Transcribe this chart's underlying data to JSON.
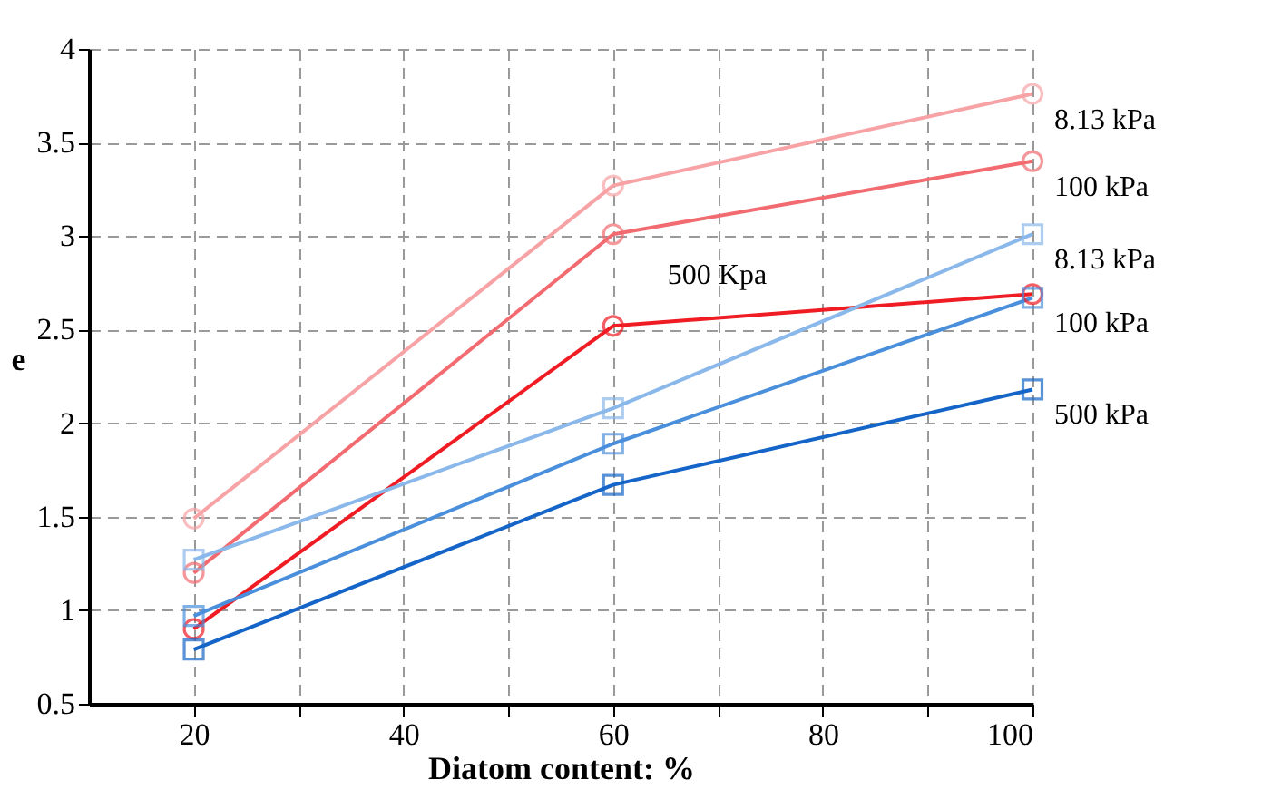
{
  "chart_data": {
    "type": "line",
    "xlabel": "Diatom content: %",
    "ylabel": "e",
    "x": [
      20,
      60,
      100
    ],
    "series": [
      {
        "name": "8.13 kPa",
        "color": "#f7a3a6",
        "marker": "circle",
        "values": [
          1.49,
          3.27,
          3.76
        ]
      },
      {
        "name": "100 kPa",
        "color": "#f26b70",
        "marker": "circle",
        "values": [
          1.2,
          3.01,
          3.4
        ]
      },
      {
        "name": "500 Kpa",
        "color": "#f01c24",
        "marker": "circle",
        "values": [
          0.9,
          2.52,
          2.69
        ]
      },
      {
        "name": "8.13 kPa",
        "color": "#8ab8ea",
        "marker": "square",
        "values": [
          1.27,
          2.08,
          3.01
        ]
      },
      {
        "name": "100 kPa",
        "color": "#4a8fdc",
        "marker": "square",
        "values": [
          0.97,
          1.89,
          2.67
        ]
      },
      {
        "name": "500 kPa",
        "color": "#1565c8",
        "marker": "square",
        "values": [
          0.79,
          1.67,
          2.18
        ]
      }
    ],
    "xlim": [
      10,
      100
    ],
    "xticks": [
      20,
      {
        "value": 30,
        "label": null
      },
      40,
      {
        "value": 50,
        "label": null
      },
      60,
      {
        "value": 70,
        "label": null
      },
      80,
      {
        "value": 90,
        "label": null
      },
      100
    ],
    "ylim": [
      0.5,
      4
    ],
    "yticks": [
      0.5,
      1,
      1.5,
      2,
      2.5,
      3,
      3.5,
      4
    ],
    "grid": true,
    "legend": false,
    "line_style": "solid"
  }
}
